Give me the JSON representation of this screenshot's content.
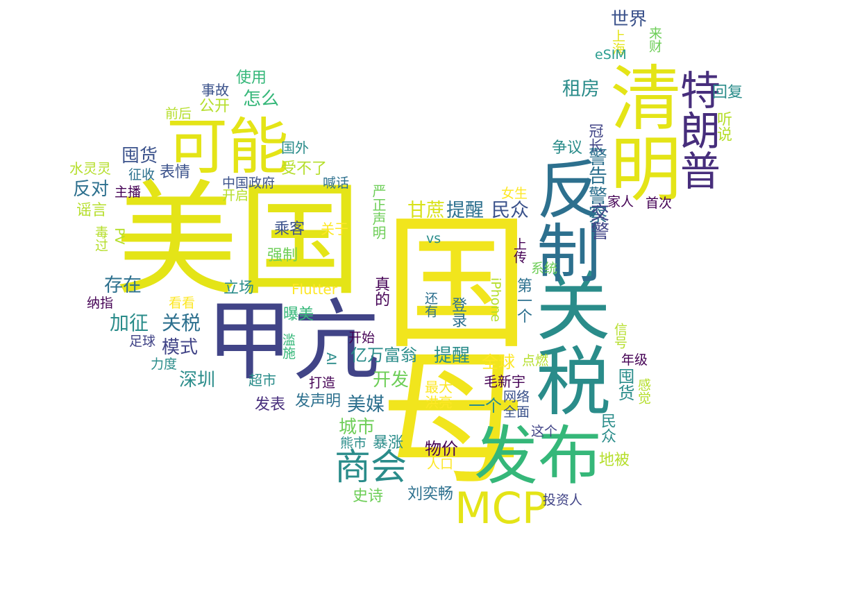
{
  "words": [
    {
      "text": "美国",
      "color": "#e4e417",
      "vertical": false
    },
    {
      "text": "甲亢",
      "color": "#414487",
      "vertical": false
    },
    {
      "text": "可能",
      "color": "#e4e417",
      "vertical": false
    },
    {
      "text": "国",
      "color": "#f1e51d",
      "vertical": false
    },
    {
      "text": "母",
      "color": "#f1e51d",
      "vertical": false
    },
    {
      "text": "关税",
      "color": "#2a8c8a",
      "vertical": true
    },
    {
      "text": "反制",
      "color": "#2d708e",
      "vertical": true
    },
    {
      "text": "清明",
      "color": "#e4e417",
      "vertical": true
    },
    {
      "text": "特朗普",
      "color": "#472e7c",
      "vertical": true
    },
    {
      "text": "发布",
      "color": "#35b779",
      "vertical": false
    },
    {
      "text": "MCP",
      "color": "#e4e417",
      "vertical": false
    },
    {
      "text": "商会",
      "color": "#2a8c8a",
      "vertical": false
    },
    {
      "text": "世界",
      "color": "#3b528b",
      "vertical": false
    },
    {
      "text": "上海",
      "color": "#e4e417",
      "vertical": true
    },
    {
      "text": "来财",
      "color": "#6ece58",
      "vertical": true
    },
    {
      "text": "eSIM",
      "color": "#2a9d8f",
      "vertical": false
    },
    {
      "text": "回复",
      "color": "#2a8c8a",
      "vertical": false
    },
    {
      "text": "听说",
      "color": "#b5de2b",
      "vertical": true
    },
    {
      "text": "租房",
      "color": "#2a8c8a",
      "vertical": false
    },
    {
      "text": "冠长",
      "color": "#414487",
      "vertical": true
    },
    {
      "text": "争议",
      "color": "#2a8c8a",
      "vertical": false
    },
    {
      "text": "警告",
      "color": "#2d708e",
      "vertical": true
    },
    {
      "text": "警察",
      "color": "#2d708e",
      "vertical": true
    },
    {
      "text": "交警",
      "color": "#414487",
      "vertical": true
    },
    {
      "text": "家人",
      "color": "#440154",
      "vertical": false
    },
    {
      "text": "首次",
      "color": "#440154",
      "vertical": false
    },
    {
      "text": "女生",
      "color": "#fde725",
      "vertical": false
    },
    {
      "text": "事故",
      "color": "#3b528b",
      "vertical": false
    },
    {
      "text": "使用",
      "color": "#35b779",
      "vertical": false
    },
    {
      "text": "公开",
      "color": "#b5de2b",
      "vertical": false
    },
    {
      "text": "怎么",
      "color": "#35b779",
      "vertical": false
    },
    {
      "text": "前后",
      "color": "#b5de2b",
      "vertical": false
    },
    {
      "text": "囤货",
      "color": "#3b528b",
      "vertical": false
    },
    {
      "text": "国外",
      "color": "#2a8c8a",
      "vertical": false
    },
    {
      "text": "水灵灵",
      "color": "#b5de2b",
      "vertical": false
    },
    {
      "text": "征收",
      "color": "#2d708e",
      "vertical": false
    },
    {
      "text": "表情",
      "color": "#3b528b",
      "vertical": false
    },
    {
      "text": "受不了",
      "color": "#b5de2b",
      "vertical": false
    },
    {
      "text": "反对",
      "color": "#2d708e",
      "vertical": false
    },
    {
      "text": "主播",
      "color": "#440154",
      "vertical": false
    },
    {
      "text": "中国政府",
      "color": "#3b528b",
      "vertical": false
    },
    {
      "text": "喊话",
      "color": "#2d708e",
      "vertical": false
    },
    {
      "text": "开启",
      "color": "#b5de2b",
      "vertical": false
    },
    {
      "text": "谣言",
      "color": "#b5de2b",
      "vertical": false
    },
    {
      "text": "严正声明",
      "color": "#6ece58",
      "vertical": true
    },
    {
      "text": "甘蔗",
      "color": "#d8e219",
      "vertical": false
    },
    {
      "text": "提醒",
      "color": "#2d708e",
      "vertical": false
    },
    {
      "text": "民众",
      "color": "#3b528b",
      "vertical": false
    },
    {
      "text": "毒过",
      "color": "#b5de2b",
      "vertical": true
    },
    {
      "text": "PV",
      "color": "#b5de2b",
      "vertical": true
    },
    {
      "text": "乘客",
      "color": "#3b528b",
      "vertical": false
    },
    {
      "text": "关于",
      "color": "#fde725",
      "vertical": false
    },
    {
      "text": "vs",
      "color": "#2a8c8a",
      "vertical": false
    },
    {
      "text": "强制",
      "color": "#6ece58",
      "vertical": false
    },
    {
      "text": "上传",
      "color": "#440154",
      "vertical": true
    },
    {
      "text": "存在",
      "color": "#2d708e",
      "vertical": false
    },
    {
      "text": "立场",
      "color": "#2a8c8a",
      "vertical": false
    },
    {
      "text": "Flutter",
      "color": "#fde725",
      "vertical": false
    },
    {
      "text": "纳指",
      "color": "#440154",
      "vertical": false
    },
    {
      "text": "看看",
      "color": "#fde725",
      "vertical": false
    },
    {
      "text": "真的",
      "color": "#440154",
      "vertical": true
    },
    {
      "text": "还有",
      "color": "#2d708e",
      "vertical": true
    },
    {
      "text": "iPhone",
      "color": "#b5de2b",
      "vertical": true
    },
    {
      "text": "系统",
      "color": "#6ece58",
      "vertical": false
    },
    {
      "text": "第一个",
      "color": "#2d708e",
      "vertical": true
    },
    {
      "text": "加征",
      "color": "#2a8c8a",
      "vertical": false
    },
    {
      "text": "关税",
      "color": "#2d708e",
      "vertical": false
    },
    {
      "text": "曝美",
      "color": "#35b779",
      "vertical": false
    },
    {
      "text": "登录",
      "color": "#2d708e",
      "vertical": true
    },
    {
      "text": "信号",
      "color": "#b5de2b",
      "vertical": true
    },
    {
      "text": "足球",
      "color": "#414487",
      "vertical": false
    },
    {
      "text": "模式",
      "color": "#414487",
      "vertical": false
    },
    {
      "text": "开始",
      "color": "#440154",
      "vertical": false
    },
    {
      "text": "滥施",
      "color": "#35b779",
      "vertical": true
    },
    {
      "text": "AI",
      "color": "#2a8c8a",
      "vertical": true
    },
    {
      "text": "亿万富翁",
      "color": "#2a8c8a",
      "vertical": false
    },
    {
      "text": "提醒",
      "color": "#2a8c8a",
      "vertical": false
    },
    {
      "text": "全球",
      "color": "#fde725",
      "vertical": false
    },
    {
      "text": "点燃",
      "color": "#b5de2b",
      "vertical": false
    },
    {
      "text": "年级",
      "color": "#440154",
      "vertical": false
    },
    {
      "text": "力度",
      "color": "#2a8c8a",
      "vertical": false
    },
    {
      "text": "深圳",
      "color": "#2a8c8a",
      "vertical": false
    },
    {
      "text": "超市",
      "color": "#2a8c8a",
      "vertical": false
    },
    {
      "text": "打造",
      "color": "#440154",
      "vertical": false
    },
    {
      "text": "开发",
      "color": "#6ece58",
      "vertical": false
    },
    {
      "text": "最大",
      "color": "#fde725",
      "vertical": false
    },
    {
      "text": "毛新宇",
      "color": "#440154",
      "vertical": false
    },
    {
      "text": "囤货",
      "color": "#2a8c8a",
      "vertical": true
    },
    {
      "text": "感觉",
      "color": "#b5de2b",
      "vertical": true
    },
    {
      "text": "发表",
      "color": "#472e7c",
      "vertical": false
    },
    {
      "text": "发声明",
      "color": "#2d708e",
      "vertical": false
    },
    {
      "text": "美媒",
      "color": "#2d708e",
      "vertical": false
    },
    {
      "text": "洪亮",
      "color": "#fde725",
      "vertical": false
    },
    {
      "text": "一个",
      "color": "#2a8c8a",
      "vertical": false
    },
    {
      "text": "网络",
      "color": "#3b528b",
      "vertical": false
    },
    {
      "text": "全面",
      "color": "#3b528b",
      "vertical": false
    },
    {
      "text": "城市",
      "color": "#6ece58",
      "vertical": false
    },
    {
      "text": "民众",
      "color": "#2a8c8a",
      "vertical": true
    },
    {
      "text": "这个",
      "color": "#414487",
      "vertical": false
    },
    {
      "text": "熊市",
      "color": "#2a8c8a",
      "vertical": false
    },
    {
      "text": "暴涨",
      "color": "#2a8c8a",
      "vertical": false
    },
    {
      "text": "物价",
      "color": "#440154",
      "vertical": false
    },
    {
      "text": "人口",
      "color": "#fde725",
      "vertical": false
    },
    {
      "text": "地被",
      "color": "#b5de2b",
      "vertical": false
    },
    {
      "text": "史诗",
      "color": "#6ece58",
      "vertical": false
    },
    {
      "text": "刘奕畅",
      "color": "#2d708e",
      "vertical": false
    },
    {
      "text": "投资人",
      "color": "#414487",
      "vertical": false
    }
  ]
}
